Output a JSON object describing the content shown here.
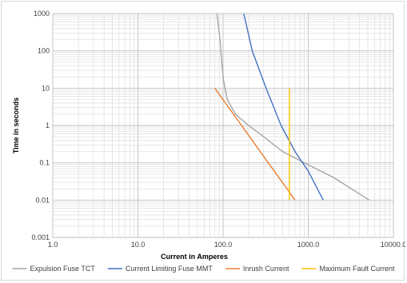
{
  "chart_data": {
    "type": "line",
    "xlabel": "Current in Amperes",
    "ylabel": "Time in seconds",
    "x_scale": "log",
    "y_scale": "log",
    "xlim": [
      1,
      10000
    ],
    "ylim": [
      0.001,
      1000
    ],
    "x_ticks": [
      "1.0",
      "10.0",
      "100.0",
      "1000.0",
      "10000.0"
    ],
    "y_ticks": [
      "0.001",
      "0.01",
      "0.1",
      "1",
      "10",
      "100",
      "1000"
    ],
    "grid": true,
    "legend_position": "bottom",
    "series": [
      {
        "name": "Expulsion Fuse TCT",
        "color": "#a5a5a5",
        "points": [
          [
            85,
            1000
          ],
          [
            92,
            200
          ],
          [
            96,
            60
          ],
          [
            100,
            20
          ],
          [
            105,
            10
          ],
          [
            112,
            5
          ],
          [
            140,
            2
          ],
          [
            200,
            1
          ],
          [
            300,
            0.5
          ],
          [
            500,
            0.2
          ],
          [
            900,
            0.1
          ],
          [
            2000,
            0.04
          ],
          [
            5200,
            0.01
          ]
        ]
      },
      {
        "name": "Current Limiting Fuse MMT",
        "color": "#4472c4",
        "points": [
          [
            175,
            1000
          ],
          [
            220,
            100
          ],
          [
            320,
            10
          ],
          [
            480,
            1
          ],
          [
            700,
            0.2
          ],
          [
            1000,
            0.06
          ],
          [
            1500,
            0.01
          ]
        ]
      },
      {
        "name": "Inrush Current",
        "color": "#ed7d31",
        "points": [
          [
            80,
            10
          ],
          [
            700,
            0.01
          ]
        ]
      },
      {
        "name": "Maximum Fault Current",
        "color": "#ffc000",
        "points": [
          [
            600,
            10
          ],
          [
            600,
            0.01
          ]
        ]
      }
    ]
  }
}
